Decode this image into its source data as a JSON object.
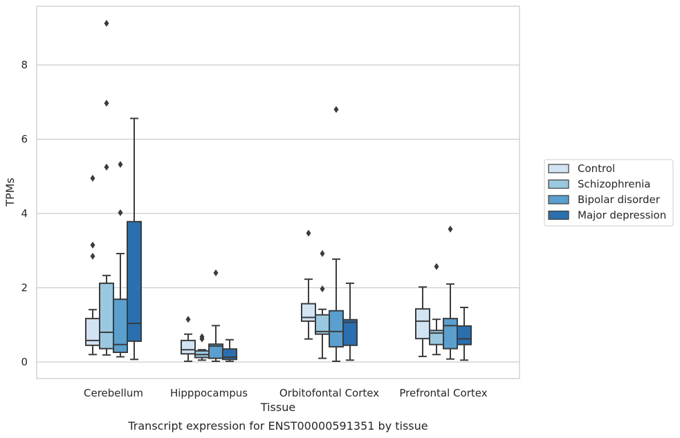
{
  "caption": "Transcript expression for ENST00000591351 by tissue",
  "chart_data": {
    "type": "box",
    "xlabel": "Tissue",
    "ylabel": "TPMs",
    "ylim": [
      -0.45,
      9.65
    ],
    "yticks": [
      0,
      2,
      4,
      6,
      8
    ],
    "ytick_labels": [
      "0",
      "2",
      "4",
      "6",
      "8"
    ],
    "grid": "horizontal",
    "legend_position": "right",
    "categories": [
      "Cerebellum",
      "Hipppocampus",
      "Orbitofontal Cortex",
      "Prefrontal Cortex"
    ],
    "series": [
      {
        "name": "Control",
        "color": "#d2e3f3",
        "boxes": [
          {
            "whislo": 0.2,
            "q1": 0.45,
            "med": 0.58,
            "q3": 1.17,
            "whishi": 1.41,
            "fliers": [
              2.85,
              3.15,
              4.95
            ]
          },
          {
            "whislo": 0.02,
            "q1": 0.22,
            "med": 0.33,
            "q3": 0.58,
            "whishi": 0.75,
            "fliers": [
              1.15
            ]
          },
          {
            "whislo": 0.62,
            "q1": 1.1,
            "med": 1.2,
            "q3": 1.57,
            "whishi": 2.23,
            "fliers": [
              3.47
            ]
          },
          {
            "whislo": 0.15,
            "q1": 0.63,
            "med": 1.1,
            "q3": 1.43,
            "whishi": 2.02,
            "fliers": []
          }
        ]
      },
      {
        "name": "Schizophrenia",
        "color": "#9ac8e0",
        "boxes": [
          {
            "whislo": 0.19,
            "q1": 0.36,
            "med": 0.8,
            "q3": 2.12,
            "whishi": 2.33,
            "fliers": [
              5.25,
              6.97,
              9.12
            ]
          },
          {
            "whislo": 0.05,
            "q1": 0.12,
            "med": 0.2,
            "q3": 0.3,
            "whishi": 0.33,
            "fliers": [
              0.62,
              0.68
            ]
          },
          {
            "whislo": 0.1,
            "q1": 0.75,
            "med": 0.82,
            "q3": 1.27,
            "whishi": 1.42,
            "fliers": [
              1.97,
              2.92
            ]
          },
          {
            "whislo": 0.2,
            "q1": 0.47,
            "med": 0.78,
            "q3": 0.85,
            "whishi": 1.15,
            "fliers": [
              2.57
            ]
          }
        ]
      },
      {
        "name": "Bipolar disorder",
        "color": "#5a9fce",
        "boxes": [
          {
            "whislo": 0.14,
            "q1": 0.26,
            "med": 0.47,
            "q3": 1.69,
            "whishi": 2.92,
            "fliers": [
              4.02,
              5.32
            ]
          },
          {
            "whislo": 0.02,
            "q1": 0.1,
            "med": 0.43,
            "q3": 0.48,
            "whishi": 0.98,
            "fliers": [
              2.4
            ]
          },
          {
            "whislo": 0.02,
            "q1": 0.41,
            "med": 0.82,
            "q3": 1.38,
            "whishi": 2.77,
            "fliers": [
              6.8
            ]
          },
          {
            "whislo": 0.08,
            "q1": 0.36,
            "med": 0.98,
            "q3": 1.17,
            "whishi": 2.1,
            "fliers": [
              3.58
            ]
          }
        ]
      },
      {
        "name": "Major depression",
        "color": "#2b6fae",
        "boxes": [
          {
            "whislo": 0.07,
            "q1": 0.56,
            "med": 1.04,
            "q3": 3.78,
            "whishi": 6.56,
            "fliers": []
          },
          {
            "whislo": 0.02,
            "q1": 0.07,
            "med": 0.13,
            "q3": 0.35,
            "whishi": 0.6,
            "fliers": []
          },
          {
            "whislo": 0.05,
            "q1": 0.45,
            "med": 1.07,
            "q3": 1.14,
            "whishi": 2.12,
            "fliers": []
          },
          {
            "whislo": 0.05,
            "q1": 0.47,
            "med": 0.62,
            "q3": 0.97,
            "whishi": 1.47,
            "fliers": []
          }
        ]
      }
    ]
  }
}
